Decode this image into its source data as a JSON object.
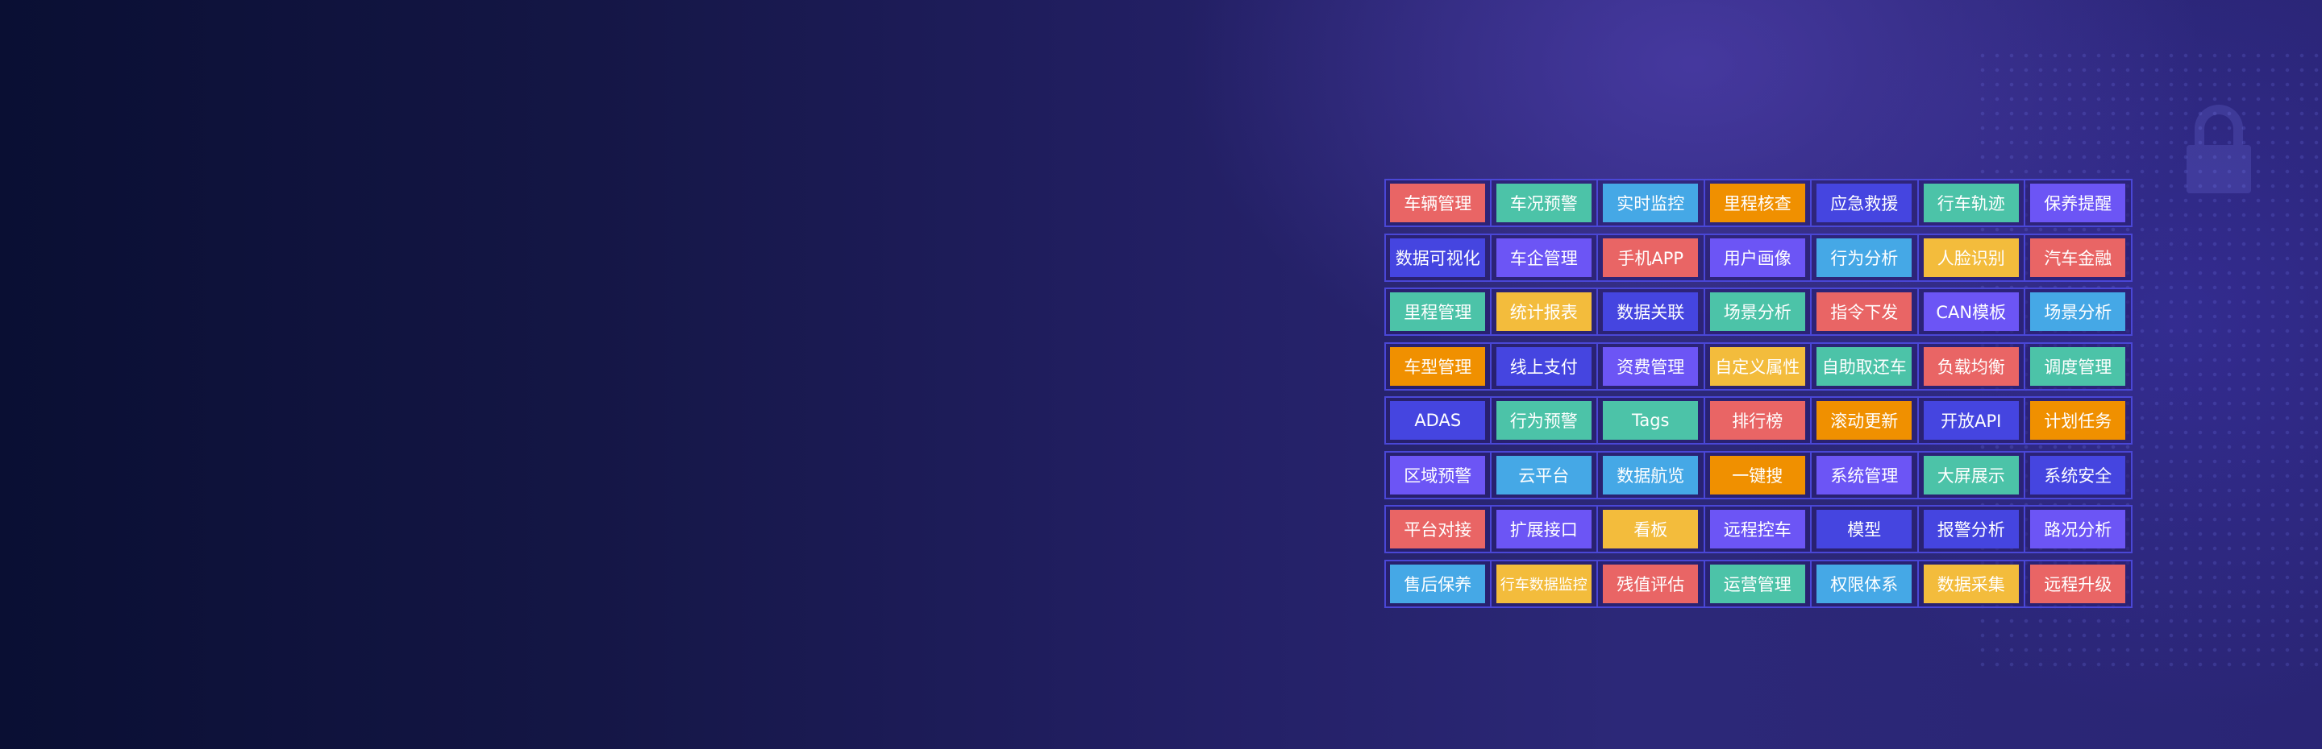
{
  "colors": {
    "red": "#e96565",
    "teal": "#4cc3a8",
    "blue": "#45a8e6",
    "orange": "#f09000",
    "indigo": "#4545e0",
    "purple": "#6c55f5",
    "yellow": "#f3bc3c"
  },
  "decor_icon": "lock-icon",
  "grid": [
    [
      {
        "label": "车辆管理",
        "color": "red"
      },
      {
        "label": "车况预警",
        "color": "teal"
      },
      {
        "label": "实时监控",
        "color": "blue"
      },
      {
        "label": "里程核查",
        "color": "orange"
      },
      {
        "label": "应急救援",
        "color": "indigo"
      },
      {
        "label": "行车轨迹",
        "color": "teal"
      },
      {
        "label": "保养提醒",
        "color": "purple"
      }
    ],
    [
      {
        "label": "数据可视化",
        "color": "indigo"
      },
      {
        "label": "车企管理",
        "color": "purple"
      },
      {
        "label": "手机APP",
        "color": "red"
      },
      {
        "label": "用户画像",
        "color": "purple"
      },
      {
        "label": "行为分析",
        "color": "blue"
      },
      {
        "label": "人脸识别",
        "color": "yellow"
      },
      {
        "label": "汽车金融",
        "color": "red"
      }
    ],
    [
      {
        "label": "里程管理",
        "color": "teal"
      },
      {
        "label": "统计报表",
        "color": "yellow"
      },
      {
        "label": "数据关联",
        "color": "indigo"
      },
      {
        "label": "场景分析",
        "color": "teal"
      },
      {
        "label": "指令下发",
        "color": "red"
      },
      {
        "label": "CAN模板",
        "color": "purple"
      },
      {
        "label": "场景分析",
        "color": "blue"
      }
    ],
    [
      {
        "label": "车型管理",
        "color": "orange"
      },
      {
        "label": "线上支付",
        "color": "indigo"
      },
      {
        "label": "资费管理",
        "color": "purple"
      },
      {
        "label": "自定义属性",
        "color": "yellow"
      },
      {
        "label": "自助取还车",
        "color": "teal"
      },
      {
        "label": "负载均衡",
        "color": "red"
      },
      {
        "label": "调度管理",
        "color": "teal"
      }
    ],
    [
      {
        "label": "ADAS",
        "color": "indigo"
      },
      {
        "label": "行为预警",
        "color": "teal"
      },
      {
        "label": "Tags",
        "color": "teal"
      },
      {
        "label": "排行榜",
        "color": "red"
      },
      {
        "label": "滚动更新",
        "color": "orange"
      },
      {
        "label": "开放API",
        "color": "indigo"
      },
      {
        "label": "计划任务",
        "color": "orange"
      }
    ],
    [
      {
        "label": "区域预警",
        "color": "purple"
      },
      {
        "label": "云平台",
        "color": "blue"
      },
      {
        "label": "数据航览",
        "color": "blue"
      },
      {
        "label": "一键搜",
        "color": "orange"
      },
      {
        "label": "系统管理",
        "color": "purple"
      },
      {
        "label": "大屏展示",
        "color": "teal"
      },
      {
        "label": "系统安全",
        "color": "indigo"
      }
    ],
    [
      {
        "label": "平台对接",
        "color": "red"
      },
      {
        "label": "扩展接口",
        "color": "purple"
      },
      {
        "label": "看板",
        "color": "yellow"
      },
      {
        "label": "远程控车",
        "color": "purple"
      },
      {
        "label": "模型",
        "color": "indigo"
      },
      {
        "label": "报警分析",
        "color": "indigo"
      },
      {
        "label": "路况分析",
        "color": "purple"
      }
    ],
    [
      {
        "label": "售后保养",
        "color": "blue"
      },
      {
        "label": "行车数据监控",
        "color": "yellow"
      },
      {
        "label": "残值评估",
        "color": "red"
      },
      {
        "label": "运营管理",
        "color": "teal"
      },
      {
        "label": "权限体系",
        "color": "blue"
      },
      {
        "label": "数据采集",
        "color": "yellow"
      },
      {
        "label": "远程升级",
        "color": "red"
      }
    ]
  ]
}
